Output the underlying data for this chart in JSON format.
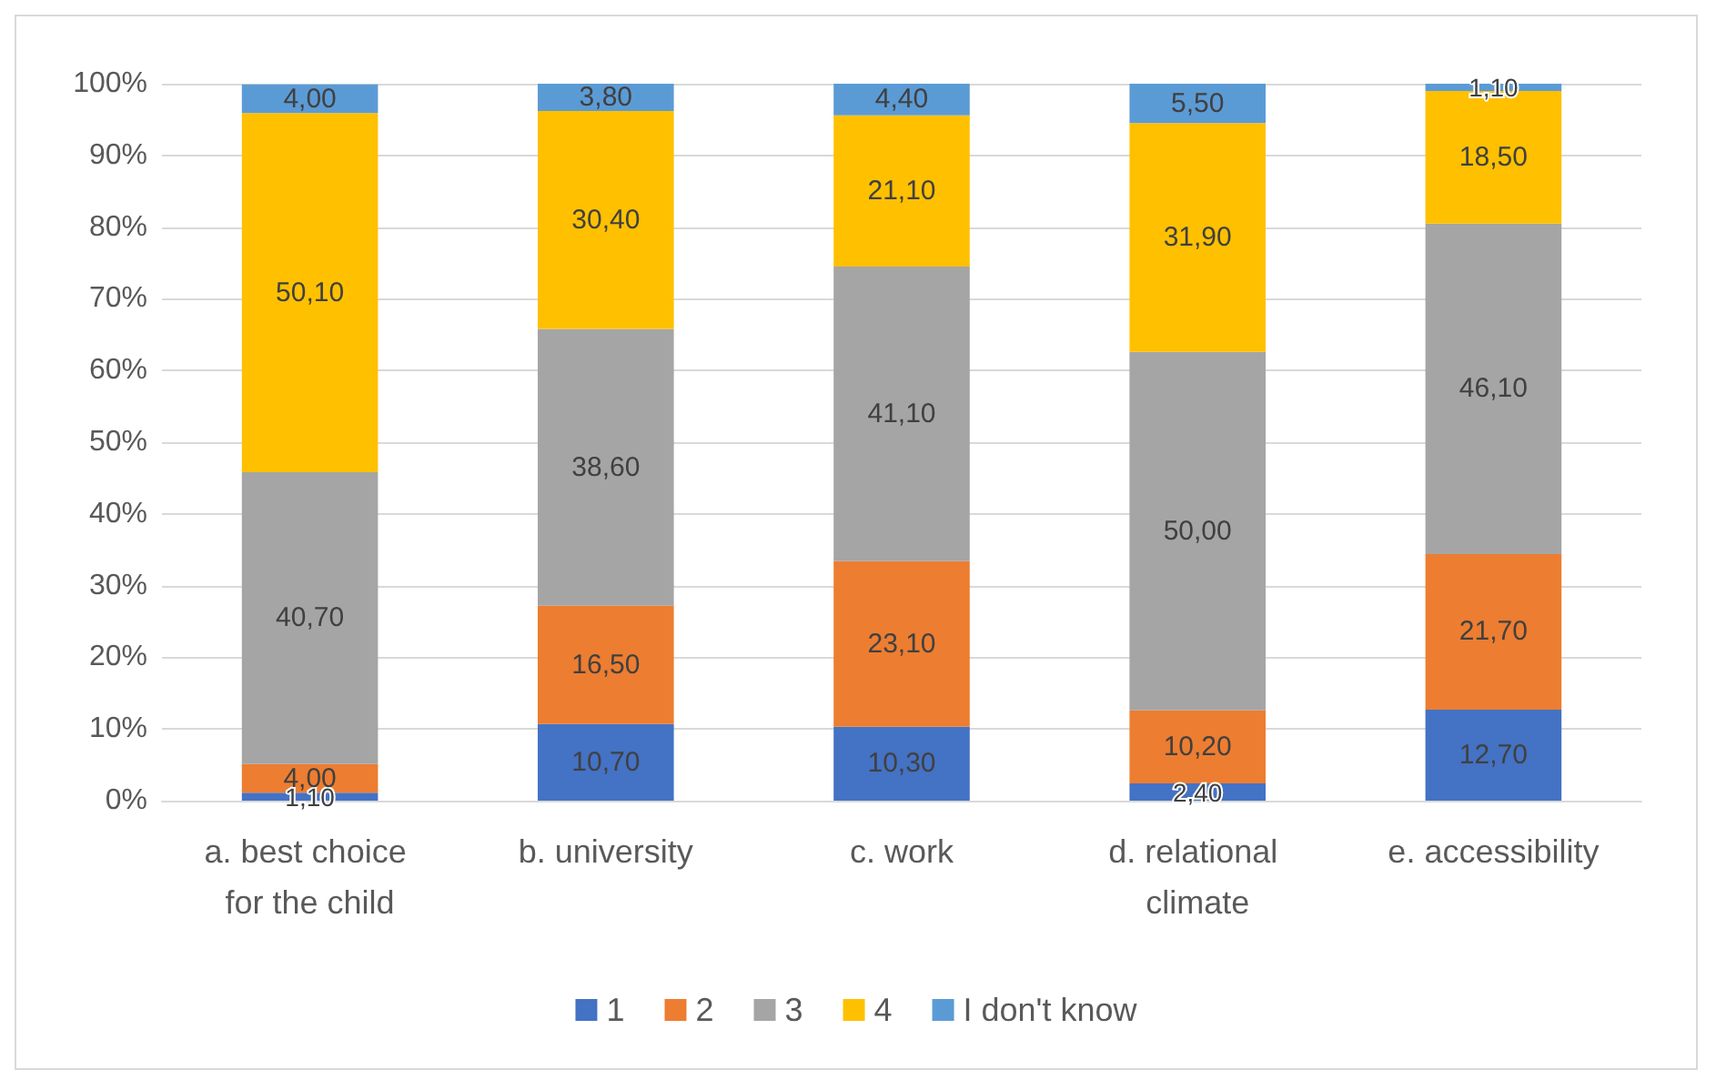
{
  "chart_data": {
    "type": "bar",
    "stacked": true,
    "categories": [
      "a. best choice for the child",
      "b. university",
      "c. work",
      "d. relational climate",
      "e. accessibility"
    ],
    "series": [
      {
        "name": "1",
        "color": "#4472c4",
        "values": [
          1.1,
          10.7,
          10.3,
          2.4,
          12.7
        ],
        "value_labels": [
          "1,10",
          "10,70",
          "10,30",
          "2,40",
          "12,70"
        ]
      },
      {
        "name": "2",
        "color": "#ed7d31",
        "values": [
          4.0,
          16.5,
          23.1,
          10.2,
          21.7
        ],
        "value_labels": [
          "4,00",
          "16,50",
          "23,10",
          "10,20",
          "21,70"
        ]
      },
      {
        "name": "3",
        "color": "#a5a5a5",
        "values": [
          40.7,
          38.6,
          41.1,
          50.0,
          46.1
        ],
        "value_labels": [
          "40,70",
          "38,60",
          "41,10",
          "50,00",
          "46,10"
        ]
      },
      {
        "name": "4",
        "color": "#ffc000",
        "values": [
          50.1,
          30.4,
          21.1,
          31.9,
          18.5
        ],
        "value_labels": [
          "50,10",
          "30,40",
          "21,10",
          "31,90",
          "18,50"
        ]
      },
      {
        "name": "I don't know",
        "color": "#5b9bd5",
        "values": [
          4.0,
          3.8,
          4.4,
          5.5,
          1.1
        ],
        "value_labels": [
          "4,00",
          "3,80",
          "4,40",
          "5,50",
          "1,10"
        ]
      }
    ],
    "ylim": [
      0,
      100
    ],
    "yticks": [
      {
        "value": 0,
        "label": "0%"
      },
      {
        "value": 10,
        "label": "10%"
      },
      {
        "value": 20,
        "label": "20%"
      },
      {
        "value": 30,
        "label": "30%"
      },
      {
        "value": 40,
        "label": "40%"
      },
      {
        "value": 50,
        "label": "50%"
      },
      {
        "value": 60,
        "label": "60%"
      },
      {
        "value": 70,
        "label": "70%"
      },
      {
        "value": 80,
        "label": "80%"
      },
      {
        "value": 90,
        "label": "90%"
      },
      {
        "value": 100,
        "label": "100%"
      }
    ],
    "grid": "y",
    "legend": "bottom"
  }
}
